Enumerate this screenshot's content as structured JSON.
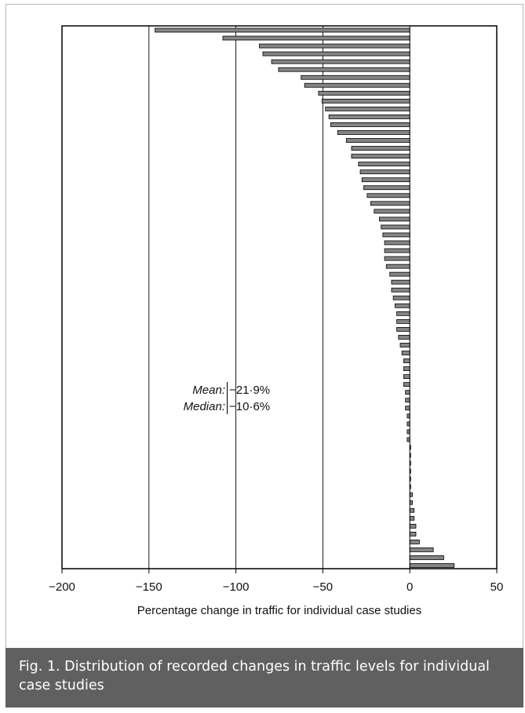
{
  "caption": "Fig. 1. Distribution of recorded changes in traffic levels for individual case studies",
  "stats": {
    "mean_label": "Mean:",
    "mean_value": "−21·9%",
    "median_label": "Median:",
    "median_value": "−10·6%"
  },
  "colors": {
    "bar_fill": "#858585",
    "bar_stroke": "#000000",
    "caption_background": "#606060",
    "caption_text": "#ffffff"
  },
  "chart_data": {
    "type": "bar",
    "orientation": "horizontal",
    "xlabel": "Percentage change in traffic for individual case studies",
    "ylabel": "",
    "xlim": [
      -200,
      50
    ],
    "xticks": [
      -200,
      -150,
      -100,
      -50,
      0,
      50
    ],
    "xtick_labels": [
      "−200",
      "−150",
      "−100",
      "−50",
      "0",
      "50"
    ],
    "vertical_gridlines_at": [
      -150,
      -100,
      -50
    ],
    "values": [
      -146.5,
      -107.5,
      -86.5,
      -84.5,
      -79.5,
      -75.5,
      -62.5,
      -60.5,
      -52.5,
      -50.5,
      -48.5,
      -46.5,
      -45.5,
      -41.5,
      -36.5,
      -33.5,
      -33.5,
      -29.5,
      -28.5,
      -27.5,
      -26.5,
      -24.5,
      -22.5,
      -20.5,
      -17.5,
      -16.5,
      -15.5,
      -14.5,
      -14.5,
      -14.5,
      -13.5,
      -11.5,
      -10.5,
      -10.5,
      -9.5,
      -8.5,
      -7.5,
      -7.5,
      -7.5,
      -6.5,
      -5.5,
      -4.5,
      -3.5,
      -3.5,
      -3.5,
      -3.5,
      -2.5,
      -2.5,
      -2.5,
      -1.5,
      -1.5,
      -1.5,
      -1.5,
      0.5,
      0.5,
      0.5,
      0.5,
      0.5,
      0.5,
      1.5,
      1.5,
      2.5,
      2.5,
      3.5,
      3.5,
      5.5,
      13.5,
      19.5,
      25.5
    ]
  }
}
